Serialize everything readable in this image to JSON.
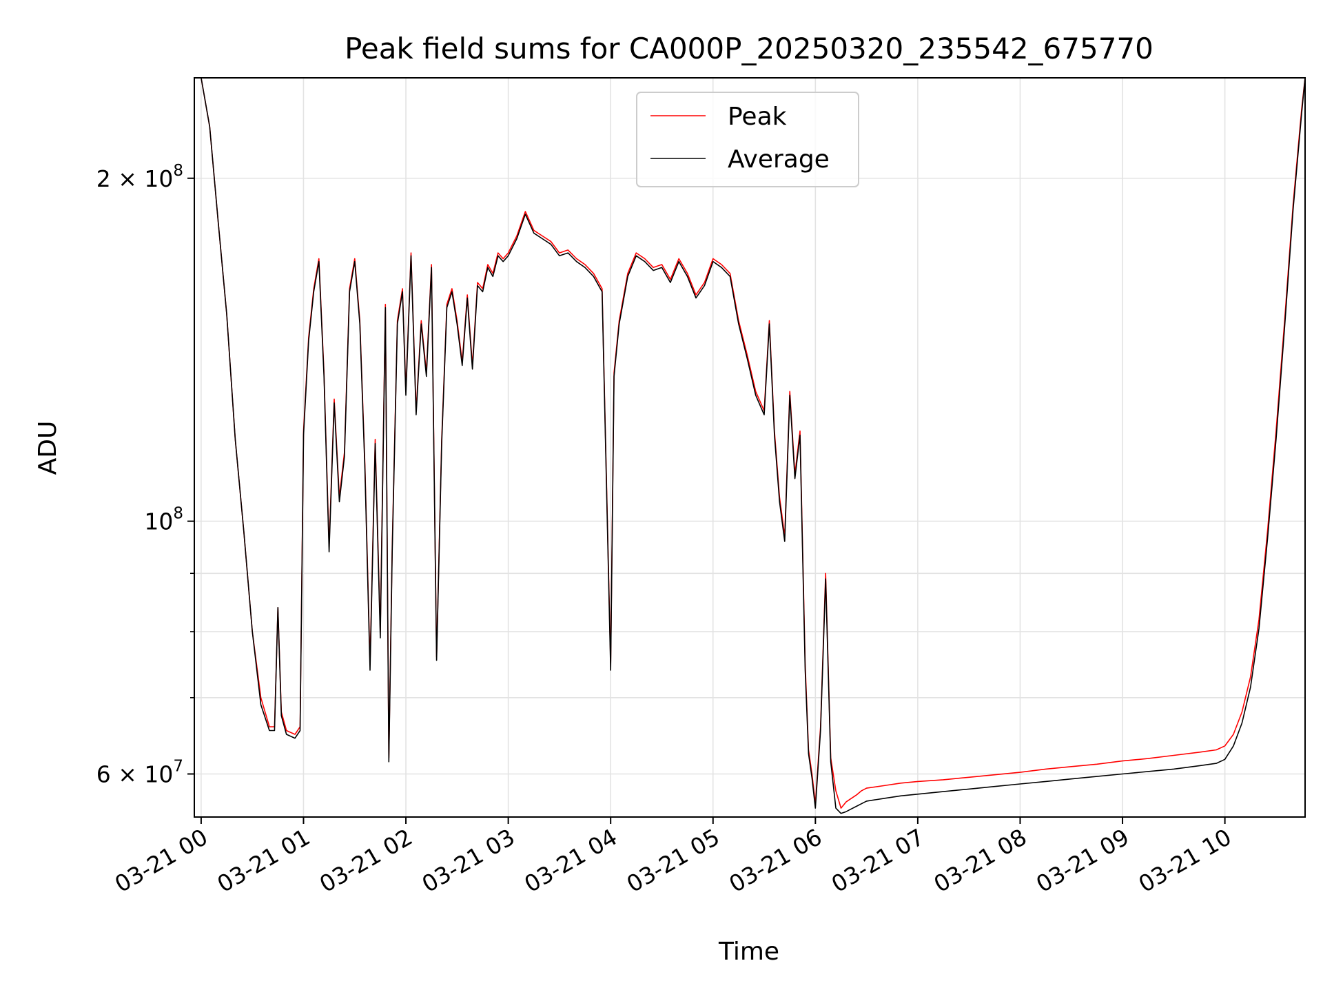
{
  "chart_data": {
    "type": "line",
    "title": "Peak field sums for CA000P_20250320_235542_675770",
    "xlabel": "Time",
    "ylabel": "ADU",
    "yscale": "log",
    "ylim": [
      55000000,
      245000000
    ],
    "xlim": [
      "03-20 23:56",
      "03-21 10:47"
    ],
    "grid": true,
    "legend_position": "top-center",
    "x_ticks": [
      "03-21 00",
      "03-21 01",
      "03-21 02",
      "03-21 03",
      "03-21 04",
      "03-21 05",
      "03-21 06",
      "03-21 07",
      "03-21 08",
      "03-21 09",
      "03-21 10"
    ],
    "y_ticks": [
      {
        "value": 60000000,
        "base": "6 × 10",
        "exp": "7"
      },
      {
        "value": 100000000,
        "base": "10",
        "exp": "8"
      },
      {
        "value": 200000000,
        "base": "2 × 10",
        "exp": "8"
      }
    ],
    "y_minor_ticks": [
      70000000,
      80000000,
      90000000
    ],
    "x": [
      "00:00",
      "00:05",
      "00:10",
      "00:15",
      "00:20",
      "00:25",
      "00:30",
      "00:35",
      "00:40",
      "00:43",
      "00:45",
      "00:47",
      "00:50",
      "00:55",
      "00:58",
      "01:00",
      "01:03",
      "01:06",
      "01:09",
      "01:12",
      "01:15",
      "01:18",
      "01:21",
      "01:24",
      "01:27",
      "01:30",
      "01:33",
      "01:36",
      "01:39",
      "01:42",
      "01:45",
      "01:48",
      "01:50",
      "01:52",
      "01:55",
      "01:58",
      "02:00",
      "02:03",
      "02:06",
      "02:09",
      "02:12",
      "02:15",
      "02:18",
      "02:21",
      "02:24",
      "02:27",
      "02:30",
      "02:33",
      "02:36",
      "02:39",
      "02:42",
      "02:45",
      "02:48",
      "02:51",
      "02:54",
      "02:57",
      "03:00",
      "03:05",
      "03:10",
      "03:15",
      "03:20",
      "03:25",
      "03:30",
      "03:35",
      "03:40",
      "03:45",
      "03:50",
      "03:55",
      "04:00",
      "04:02",
      "04:05",
      "04:10",
      "04:15",
      "04:20",
      "04:25",
      "04:30",
      "04:35",
      "04:40",
      "04:45",
      "04:50",
      "04:55",
      "05:00",
      "05:05",
      "05:10",
      "05:15",
      "05:20",
      "05:25",
      "05:30",
      "05:33",
      "05:36",
      "05:39",
      "05:42",
      "05:45",
      "05:48",
      "05:51",
      "05:54",
      "05:56",
      "05:58",
      "06:00",
      "06:03",
      "06:06",
      "06:09",
      "06:12",
      "06:15",
      "06:18",
      "06:21",
      "06:24",
      "06:27",
      "06:30",
      "06:40",
      "06:50",
      "07:00",
      "07:15",
      "07:30",
      "07:45",
      "08:00",
      "08:15",
      "08:30",
      "08:45",
      "09:00",
      "09:15",
      "09:30",
      "09:45",
      "09:55",
      "10:00",
      "10:05",
      "10:10",
      "10:15",
      "10:20",
      "10:25",
      "10:30",
      "10:35",
      "10:40",
      "10:45",
      "10:47"
    ],
    "series": [
      {
        "name": "Peak",
        "color": "#ff0000",
        "values": [
          245000000,
          222000000,
          183000000,
          152000000,
          118000000,
          98000000,
          80000000,
          70000000,
          66000000,
          66000000,
          84000000,
          68000000,
          65500000,
          65000000,
          66000000,
          120000000,
          145000000,
          160000000,
          170000000,
          135000000,
          95000000,
          128000000,
          105000000,
          115000000,
          160000000,
          170000000,
          150000000,
          112000000,
          75000000,
          118000000,
          80000000,
          155000000,
          62000000,
          95000000,
          150000000,
          160000000,
          130000000,
          172000000,
          125000000,
          150000000,
          135000000,
          168000000,
          76000000,
          118000000,
          155000000,
          160000000,
          150000000,
          138000000,
          158000000,
          137000000,
          162000000,
          160000000,
          168000000,
          165000000,
          172000000,
          170000000,
          172000000,
          178000000,
          187000000,
          180000000,
          178000000,
          176000000,
          172000000,
          173000000,
          170000000,
          168000000,
          165000000,
          160000000,
          75000000,
          135000000,
          150000000,
          165000000,
          172000000,
          170000000,
          167000000,
          168000000,
          163000000,
          170000000,
          165000000,
          158000000,
          162000000,
          170000000,
          168000000,
          165000000,
          150000000,
          140000000,
          130000000,
          125000000,
          150000000,
          120000000,
          105000000,
          97000000,
          130000000,
          110000000,
          120000000,
          75000000,
          63000000,
          60000000,
          56500000,
          66000000,
          90000000,
          62000000,
          58000000,
          56000000,
          56700000,
          57100000,
          57500000,
          58000000,
          58300000,
          58600000,
          58900000,
          59100000,
          59300000,
          59600000,
          59900000,
          60200000,
          60600000,
          60900000,
          61200000,
          61600000,
          61900000,
          62300000,
          62700000,
          63000000,
          63500000,
          65000000,
          68000000,
          73000000,
          82000000,
          98000000,
          120000000,
          150000000,
          190000000,
          230000000,
          245000000
        ]
      },
      {
        "name": "Average",
        "color": "#000000",
        "values": [
          245000000,
          222000000,
          183000000,
          152000000,
          118000000,
          98000000,
          80000000,
          69000000,
          65500000,
          65500000,
          84000000,
          67500000,
          65000000,
          64500000,
          65500000,
          119000000,
          144000000,
          159000000,
          169000000,
          134000000,
          94000000,
          127000000,
          104000000,
          114000000,
          159000000,
          169000000,
          149000000,
          111000000,
          74000000,
          117000000,
          79000000,
          154000000,
          61500000,
          94000000,
          149000000,
          159000000,
          129000000,
          171000000,
          124000000,
          149000000,
          134000000,
          167000000,
          75500000,
          117000000,
          154000000,
          159000000,
          149000000,
          137000000,
          157000000,
          136000000,
          161000000,
          159000000,
          167000000,
          164000000,
          171000000,
          169000000,
          171000000,
          177000000,
          186000000,
          179000000,
          177000000,
          175000000,
          171000000,
          172000000,
          169000000,
          167000000,
          164000000,
          159000000,
          74000000,
          134000000,
          149000000,
          164000000,
          171000000,
          169000000,
          166000000,
          167000000,
          162000000,
          169000000,
          164000000,
          157000000,
          161000000,
          169000000,
          167000000,
          164000000,
          149000000,
          139000000,
          129000000,
          124000000,
          149000000,
          119000000,
          104000000,
          96000000,
          129000000,
          109000000,
          119000000,
          74000000,
          62500000,
          59500000,
          56000000,
          65500000,
          89000000,
          61500000,
          56000000,
          55400000,
          55600000,
          55900000,
          56200000,
          56500000,
          56800000,
          57100000,
          57400000,
          57600000,
          57900000,
          58200000,
          58500000,
          58800000,
          59100000,
          59400000,
          59700000,
          60000000,
          60300000,
          60600000,
          61000000,
          61300000,
          61800000,
          63500000,
          66500000,
          71500000,
          80500000,
          96500000,
          118000000,
          148000000,
          188000000,
          228000000,
          245000000
        ]
      }
    ]
  }
}
